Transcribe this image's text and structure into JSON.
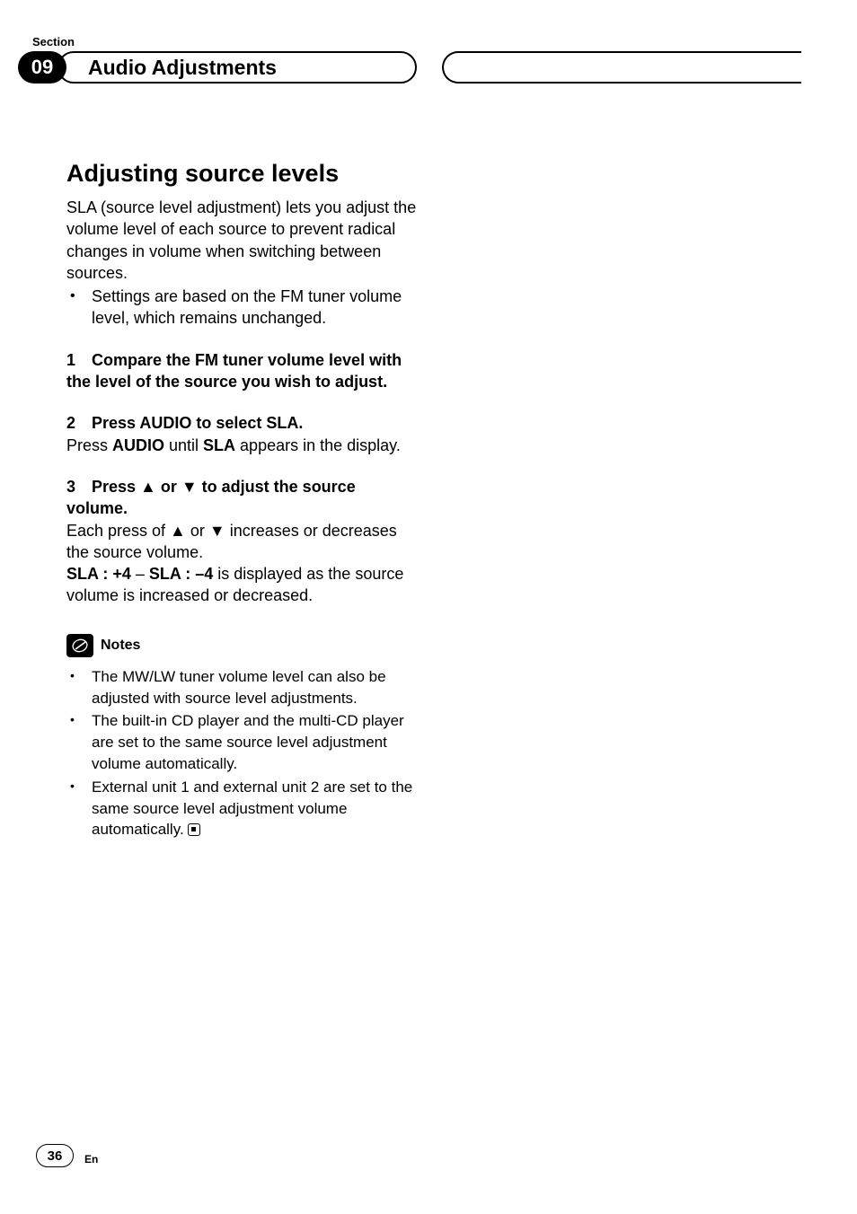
{
  "header": {
    "section_label": "Section",
    "section_number": "09",
    "chapter_title": "Audio Adjustments"
  },
  "main": {
    "heading": "Adjusting source levels",
    "intro": "SLA (source level adjustment) lets you adjust the volume level of each source to prevent radical changes in volume when switching between sources.",
    "intro_bullet": "Settings are based on the FM tuner volume level, which remains unchanged.",
    "steps": [
      {
        "num": "1",
        "title": "Compare the FM tuner volume level with the level of the source you wish to adjust.",
        "body_segments": []
      },
      {
        "num": "2",
        "title": "Press AUDIO to select SLA.",
        "body_segments": [
          {
            "t": "Press ",
            "b": false
          },
          {
            "t": "AUDIO",
            "b": true
          },
          {
            "t": " until ",
            "b": false
          },
          {
            "t": "SLA",
            "b": true
          },
          {
            "t": " appears in the display.",
            "b": false
          }
        ]
      },
      {
        "num": "3",
        "title": "Press ▲ or ▼ to adjust the source volume.",
        "body_segments": [
          {
            "t": "Each press of ▲ or ▼ increases or decreases the source volume.\n",
            "b": false
          },
          {
            "t": "SLA : +4",
            "b": true
          },
          {
            "t": " – ",
            "b": false
          },
          {
            "t": "SLA : –4",
            "b": true
          },
          {
            "t": " is displayed as the source volume is increased or decreased.",
            "b": false
          }
        ]
      }
    ],
    "notes_label": "Notes",
    "notes": [
      "The MW/LW tuner volume level can also be adjusted with source level adjustments.",
      "The built-in CD player and the multi-CD player are set to the same source level adjustment volume automatically.",
      "External unit 1 and external unit 2 are set to the same source level adjustment volume automatically."
    ]
  },
  "footer": {
    "page": "36",
    "lang": "En"
  },
  "style": {
    "background": "#ffffff",
    "text_color": "#000000",
    "badge_bg": "#000000",
    "badge_fg": "#ffffff",
    "heading_fontsize": 27,
    "body_fontsize": 18,
    "notes_fontsize": 17
  }
}
